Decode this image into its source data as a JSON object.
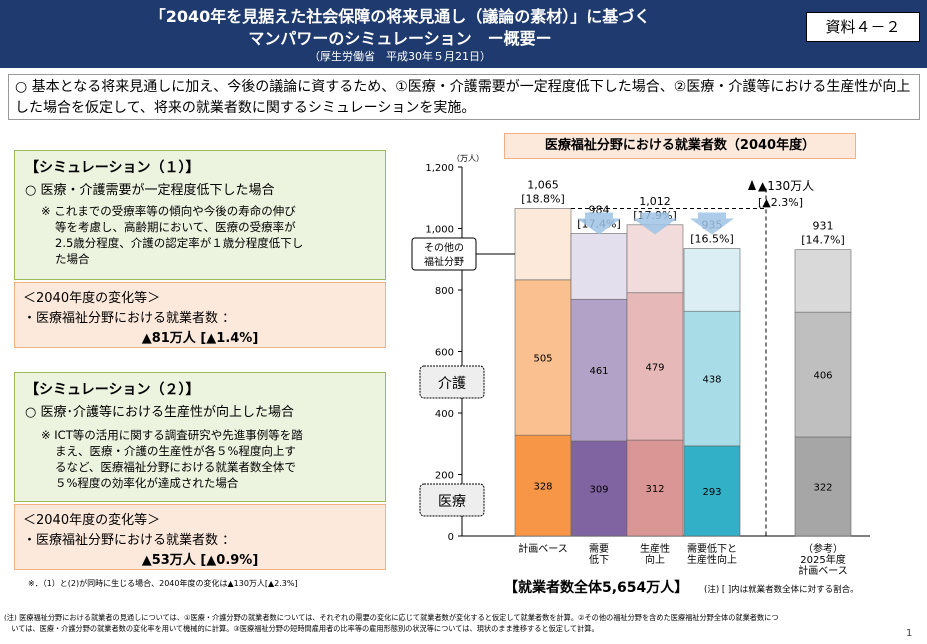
{
  "header": {
    "title_line1": "「2040年を見据えた社会保障の将来見通し（議論の素材）」に基づく",
    "title_line2": "マンパワーのシミュレーション　ー概要ー",
    "source": "（厚生労働省　平成30年５月21日）",
    "doc_ref": "資料４－２"
  },
  "intro": {
    "text": "○ 基本となる将来見通しに加え、今後の議論に資するため、①医療・介護需要が一定程度低下した場合、②医療・介護等における生産性が向上した場合を仮定して、将来の就業者数に関するシミュレーションを実施。"
  },
  "sim1": {
    "title": "【シミュレーション（１）】",
    "subtitle": "○ 医療・介護需要が一定程度低下した場合",
    "note_lines": [
      "※ これまでの受療率等の傾向や今後の寿命の伸び",
      "等を考慮し、高齢期において、医療の受療率が",
      "2.5歳分程度、介護の認定率が１歳分程度低下し",
      "た場合"
    ],
    "result_title": "＜2040年度の変化等＞",
    "result_line": "・医療福祉分野における就業者数 ：",
    "result_value": "▲81万人 [▲1.4%]"
  },
  "sim2": {
    "title": "【シミュレーション（２）】",
    "subtitle": "○ 医療･介護等における生産性が向上した場合",
    "note_lines": [
      "※ ICT等の活用に関する調査研究や先進事例等を踏",
      "まえ、医療・介護の生産性が各５%程度向上す",
      "るなど、医療福祉分野における就業者数全体で",
      "５%程度の効率化が達成された場合"
    ],
    "result_title": "＜2040年度の変化等＞",
    "result_line": "・医療福祉分野における就業者数 ：",
    "result_value": "▲53万人 [▲0.9%]"
  },
  "footnote_small": "※．（1）と(2)が同時に生じる場合、2040年度の変化は▲130万人[▲2.3%]",
  "footnote_bottom": [
    "(注) 医療福祉分野における就業者の見通しについては、①医療・介護分野の就業者数については、それぞれの需要の変化に応じて就業者数が変化すると仮定して就業者数を計算。②その他の福祉分野を含めた医療福祉分野全体の就業者数につ",
    "　いては、医療・介護分野の就業者数の変化率を用いて機械的に計算。③医療福祉分野の短時間雇用者の比率等の雇用形態別の状況等については、現状のまま推移すると仮定して計算。"
  ],
  "page_number": "1",
  "chart_data": {
    "type": "bar",
    "stacked": true,
    "title": "医療福祉分野における就業者数（2040年度）",
    "ylabel": "（万人）",
    "ylim": [
      0,
      1200
    ],
    "yticks": [
      0,
      200,
      400,
      600,
      800,
      1000,
      1200
    ],
    "categories": [
      "計画ベース",
      "需要低下",
      "生産性向上",
      "需要低下と生産性向上",
      "（参考）2025年度計画ベース"
    ],
    "category_lines": [
      [
        "計画ベース"
      ],
      [
        "需要",
        "低下"
      ],
      [
        "生産性",
        "向上"
      ],
      [
        "需要低下と",
        "生産性向上"
      ],
      [
        "（参考）",
        "2025年度",
        "計画ベース"
      ]
    ],
    "series": [
      {
        "name": "医療",
        "values": [
          328,
          309,
          312,
          293,
          322
        ]
      },
      {
        "name": "介護",
        "values": [
          505,
          461,
          479,
          438,
          406
        ]
      },
      {
        "name": "その他の福祉分野",
        "values": [
          232,
          214,
          221,
          204,
          203
        ]
      }
    ],
    "totals": [
      "1,065",
      "984",
      "1,012",
      "935",
      "931"
    ],
    "total_values": [
      1065,
      984,
      1012,
      935,
      931
    ],
    "shares": [
      "[18.8%]",
      "[17.4%]",
      "[17.9%]",
      "[16.5%]",
      "[14.7%]"
    ],
    "segment_labels_shown": [
      [
        "328",
        "505",
        ""
      ],
      [
        "309",
        "461",
        ""
      ],
      [
        "312",
        "479",
        ""
      ],
      [
        "293",
        "438",
        ""
      ],
      [
        "322",
        "406",
        ""
      ]
    ],
    "colors": [
      [
        "#f79646",
        "#fac090",
        "#fde9d9"
      ],
      [
        "#8064a2",
        "#b3a2c7",
        "#e4dfec"
      ],
      [
        "#da9694",
        "#e6b9b8",
        "#f2dcdb"
      ],
      [
        "#31b0c8",
        "#a8dde8",
        "#daeef3"
      ],
      [
        "#a6a6a6",
        "#bfbfbf",
        "#d9d9d9"
      ]
    ],
    "legend_other": [
      "その他の",
      "福祉分野"
    ],
    "legend_care": "介護",
    "legend_medical": "医療",
    "annotation_change": "▲130万人",
    "annotation_change_pct": "[▲2.3%]",
    "total_workers": "【就業者数全体5,654万人】",
    "total_note": "(注) [ ]内は就業者数全体に対する割合。"
  }
}
